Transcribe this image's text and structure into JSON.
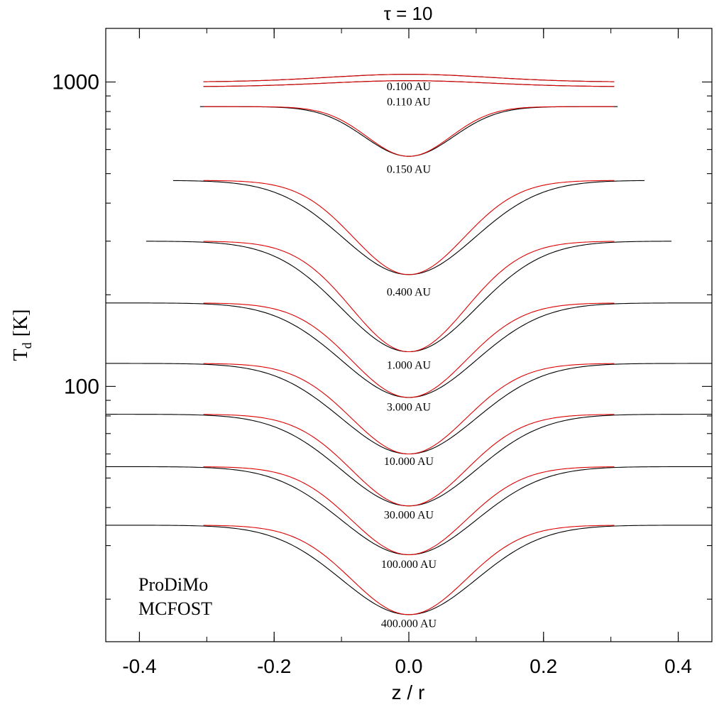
{
  "chart_data": {
    "type": "line",
    "title": "τ = 10",
    "xlabel": "z / r",
    "ylabel_main": "T",
    "ylabel_sub": "d",
    "ylabel_unit": "[K]",
    "xlim": [
      -0.45,
      0.45
    ],
    "ylim": [
      14.5,
      1500
    ],
    "yscale": "log",
    "x_ticks": [
      -0.4,
      -0.2,
      0.0,
      0.2,
      0.4
    ],
    "x_tick_labels": [
      "-0.4",
      "-0.2",
      "0.0",
      "0.2",
      "0.4"
    ],
    "y_ticks_major": [
      100,
      1000
    ],
    "y_tick_labels": [
      "100",
      "1000"
    ],
    "legend": [
      {
        "name": "ProDiMo",
        "color": "#dd0000"
      },
      {
        "name": "MCFOST",
        "color": "#000000"
      }
    ],
    "legend_placement": "bottom-left",
    "series_colors": {
      "prodimo": "#dd0000",
      "mcfost": "#000000"
    },
    "radii": [
      {
        "label": "0.100 AU",
        "plateau": 1000,
        "center": 1060,
        "width_prodimo": 0.12,
        "width_mcfost": 0.12,
        "xmax_prodimo": 0.305,
        "xmax_mcfost": 0.305,
        "label_y": 970
      },
      {
        "label": "0.110 AU",
        "plateau": 965,
        "center": 1010,
        "width_prodimo": 0.12,
        "width_mcfost": 0.12,
        "xmax_prodimo": 0.305,
        "xmax_mcfost": 0.305,
        "label_y": 865
      },
      {
        "label": "0.150 AU",
        "plateau": 830,
        "center": 570,
        "width_prodimo": 0.062,
        "width_mcfost": 0.066,
        "xmax_prodimo": 0.305,
        "xmax_mcfost": 0.31,
        "label_y": 520
      },
      {
        "label": "0.400 AU",
        "plateau": 475,
        "center": 233,
        "width_prodimo": 0.082,
        "width_mcfost": 0.098,
        "xmax_prodimo": 0.305,
        "xmax_mcfost": 0.35,
        "label_y": 205
      },
      {
        "label": "1.000 AU",
        "plateau": 300,
        "center": 130,
        "width_prodimo": 0.085,
        "width_mcfost": 0.1,
        "xmax_prodimo": 0.305,
        "xmax_mcfost": 0.39,
        "label_y": 118
      },
      {
        "label": "3.000 AU",
        "plateau": 188,
        "center": 92,
        "width_prodimo": 0.085,
        "width_mcfost": 0.1,
        "xmax_prodimo": 0.305,
        "xmax_mcfost": 0.45,
        "label_y": 86
      },
      {
        "label": "10.000 AU",
        "plateau": 119,
        "center": 60,
        "width_prodimo": 0.085,
        "width_mcfost": 0.1,
        "xmax_prodimo": 0.305,
        "xmax_mcfost": 0.45,
        "label_y": 57
      },
      {
        "label": "30.000 AU",
        "plateau": 81,
        "center": 40.5,
        "width_prodimo": 0.085,
        "width_mcfost": 0.1,
        "xmax_prodimo": 0.305,
        "xmax_mcfost": 0.45,
        "label_y": 38
      },
      {
        "label": "100.000 AU",
        "plateau": 54.5,
        "center": 28,
        "width_prodimo": 0.085,
        "width_mcfost": 0.1,
        "xmax_prodimo": 0.305,
        "xmax_mcfost": 0.45,
        "label_y": 26.2
      },
      {
        "label": "400.000 AU",
        "plateau": 35,
        "center": 17.8,
        "width_prodimo": 0.085,
        "width_mcfost": 0.1,
        "xmax_prodimo": 0.305,
        "xmax_mcfost": 0.45,
        "label_y": 16.7
      }
    ]
  }
}
